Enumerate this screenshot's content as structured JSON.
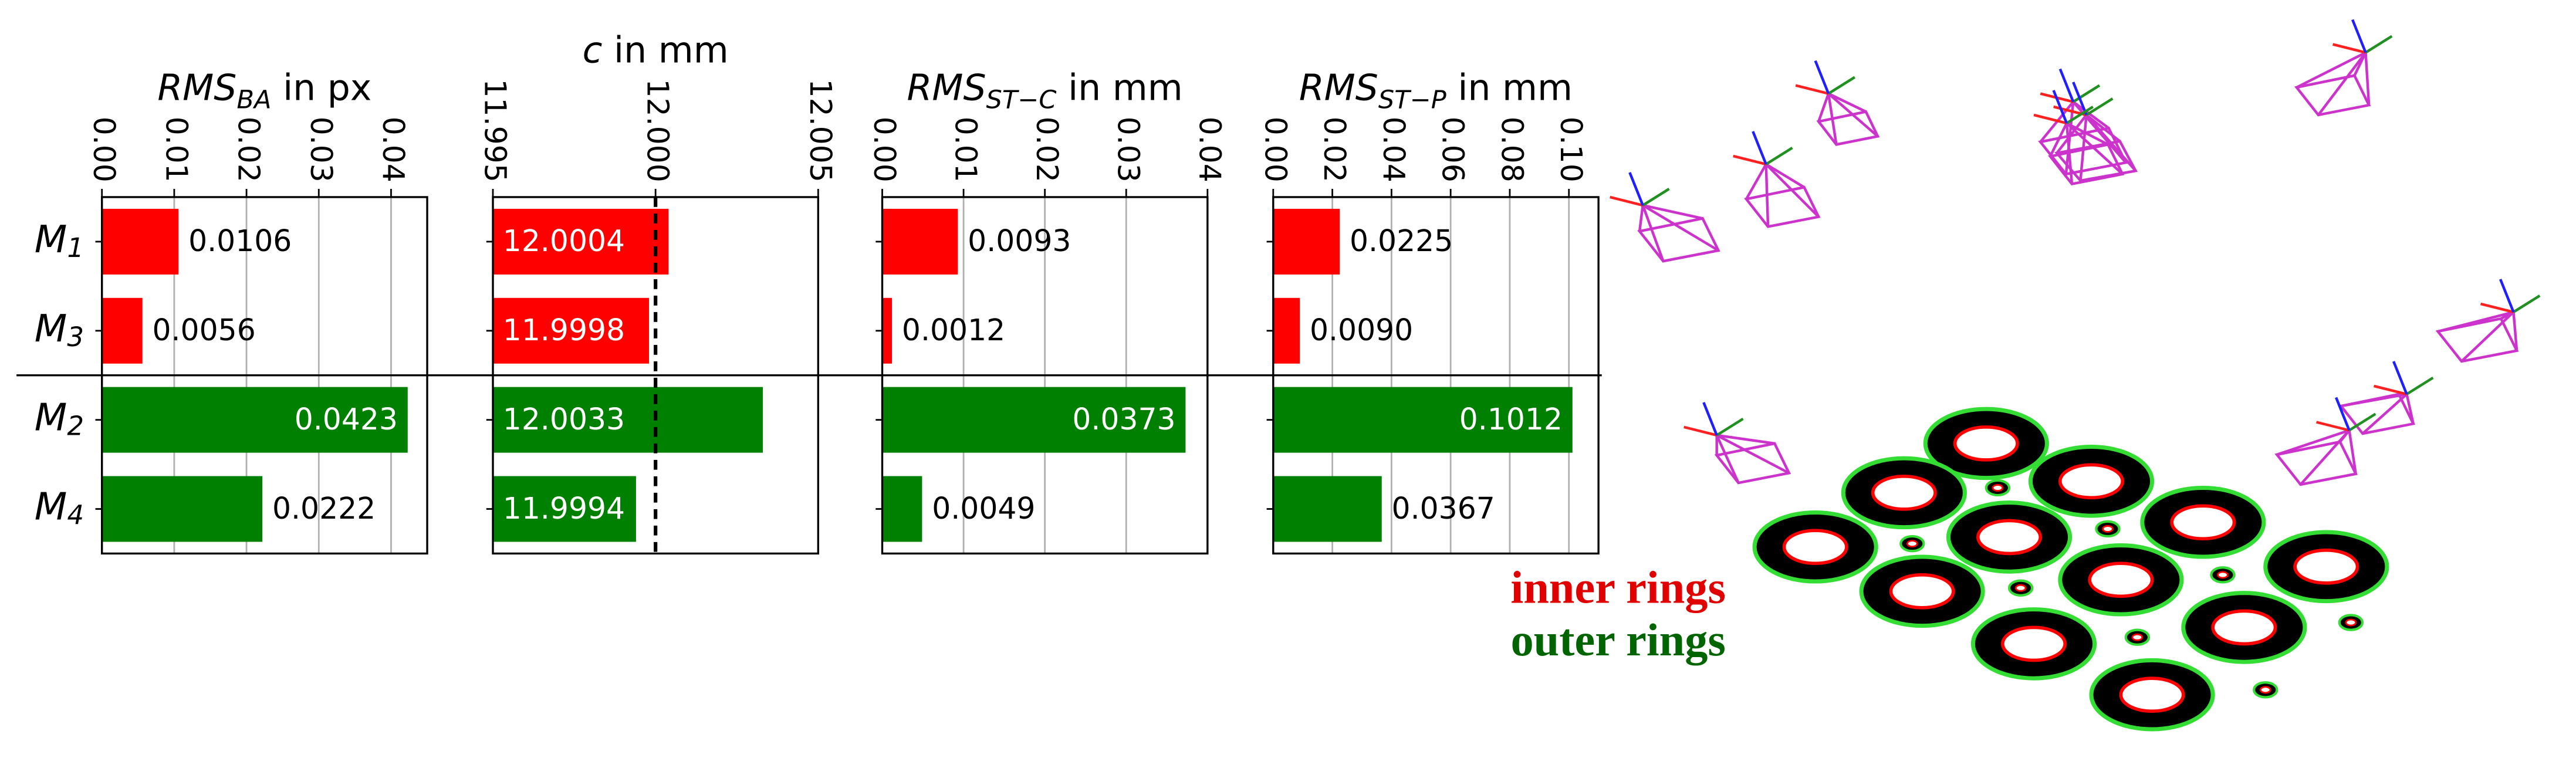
{
  "chart_data": [
    {
      "type": "barh",
      "title": {
        "text": "RMS",
        "subscript": "BA",
        "suffix": "in px"
      },
      "categories": [
        {
          "text": "M",
          "subscript": "1"
        },
        {
          "text": "M",
          "subscript": "3"
        },
        {
          "text": "M",
          "subscript": "2"
        },
        {
          "text": "M",
          "subscript": "4"
        }
      ],
      "values": [
        0.0106,
        0.0056,
        0.0423,
        0.0222
      ],
      "value_labels": [
        "0.0106",
        "0.0056",
        "0.0423",
        "0.0222"
      ],
      "label_position": [
        "outside",
        "outside",
        "inside-end",
        "outside"
      ],
      "colors": [
        "#ff0000",
        "#ff0000",
        "#008000",
        "#008000"
      ],
      "xlim": [
        0,
        0.045
      ],
      "xticks": [
        {
          "value": 0,
          "label": "0.00"
        },
        {
          "value": 0.01,
          "label": "0.01"
        },
        {
          "value": 0.02,
          "label": "0.02"
        },
        {
          "value": 0.03,
          "label": "0.03"
        },
        {
          "value": 0.04,
          "label": "0.04"
        }
      ],
      "grid": true
    },
    {
      "type": "barh",
      "title": {
        "text": "c",
        "suffix": "in mm"
      },
      "values": [
        12.0004,
        11.9998,
        12.0033,
        11.9994
      ],
      "value_labels": [
        "12.0004",
        "11.9998",
        "12.0033",
        "11.9994"
      ],
      "label_position": [
        "inside-start",
        "inside-start",
        "inside-start",
        "inside-start"
      ],
      "colors": [
        "#ff0000",
        "#ff0000",
        "#008000",
        "#008000"
      ],
      "xlim": [
        11.995,
        12.005
      ],
      "xticks": [
        {
          "value": 11.995,
          "label": "11.995"
        },
        {
          "value": 12.0,
          "label": "12.000"
        },
        {
          "value": 12.005,
          "label": "12.005"
        }
      ],
      "grid": false,
      "reference_line": 12.0
    },
    {
      "type": "barh",
      "title": {
        "text": "RMS",
        "subscript": "ST−C",
        "suffix": "in mm"
      },
      "values": [
        0.0093,
        0.0012,
        0.0373,
        0.0049
      ],
      "value_labels": [
        "0.0093",
        "0.0012",
        "0.0373",
        "0.0049"
      ],
      "label_position": [
        "outside",
        "outside",
        "inside-end",
        "outside"
      ],
      "colors": [
        "#ff0000",
        "#ff0000",
        "#008000",
        "#008000"
      ],
      "xlim": [
        0,
        0.04
      ],
      "xticks": [
        {
          "value": 0,
          "label": "0.00"
        },
        {
          "value": 0.01,
          "label": "0.01"
        },
        {
          "value": 0.02,
          "label": "0.02"
        },
        {
          "value": 0.03,
          "label": "0.03"
        },
        {
          "value": 0.04,
          "label": "0.04"
        }
      ],
      "grid": true
    },
    {
      "type": "barh",
      "title": {
        "text": "RMS",
        "subscript": "ST−P",
        "suffix": "in mm"
      },
      "values": [
        0.0225,
        0.009,
        0.1012,
        0.0367
      ],
      "value_labels": [
        "0.0225",
        "0.0090",
        "0.1012",
        "0.0367"
      ],
      "label_position": [
        "outside",
        "outside",
        "inside-end",
        "outside"
      ],
      "colors": [
        "#ff0000",
        "#ff0000",
        "#008000",
        "#008000"
      ],
      "xlim": [
        0,
        0.11
      ],
      "xticks": [
        {
          "value": 0,
          "label": "0.00"
        },
        {
          "value": 0.02,
          "label": "0.02"
        },
        {
          "value": 0.04,
          "label": "0.04"
        },
        {
          "value": 0.06,
          "label": "0.06"
        },
        {
          "value": 0.08,
          "label": "0.08"
        },
        {
          "value": 0.1,
          "label": "0.10"
        }
      ],
      "grid": true
    }
  ],
  "annotations": {
    "inner": "inner rings",
    "outer": "outer rings"
  }
}
